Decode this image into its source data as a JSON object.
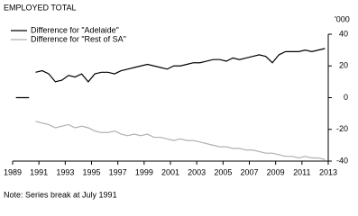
{
  "chart_data": {
    "type": "line",
    "title": "EMPLOYED TOTAL",
    "y_unit": "'000",
    "note": "Note: Series break at July 1991",
    "x": [
      1989.25,
      1990.25,
      1990.5,
      1990.75,
      1991.25,
      1991.75,
      1992.25,
      1992.75,
      1993.25,
      1993.75,
      1994.25,
      1994.75,
      1995.25,
      1995.75,
      1996.25,
      1996.75,
      1997.25,
      1997.75,
      1998.25,
      1998.75,
      1999.25,
      1999.75,
      2000.25,
      2000.75,
      2001.25,
      2001.75,
      2002.25,
      2002.75,
      2003.25,
      2003.75,
      2004.25,
      2004.75,
      2005.25,
      2005.75,
      2006.25,
      2006.75,
      2007.25,
      2007.75,
      2008.25,
      2008.75,
      2009.25,
      2009.75,
      2010.25,
      2010.75,
      2011.25,
      2011.75,
      2012.25,
      2012.75
    ],
    "series": [
      {
        "name": "Difference for \"Adelaide\"",
        "color": "#000000",
        "values": [
          0,
          0,
          null,
          16,
          17,
          15,
          10,
          11,
          14,
          13,
          15,
          10,
          15,
          16,
          16,
          15,
          17,
          18,
          19,
          20,
          21,
          20,
          19,
          18,
          20,
          20,
          21,
          22,
          22,
          23,
          24,
          24,
          23,
          25,
          24,
          25,
          26,
          27,
          26,
          22,
          27,
          29,
          29,
          29,
          30,
          29,
          30,
          31
        ]
      },
      {
        "name": "Difference for \"Rest of SA\"",
        "color": "#b0b0b0",
        "values": [
          null,
          null,
          null,
          -15,
          -16,
          -17,
          -19,
          -18,
          -17,
          -19,
          -18,
          -19,
          -21,
          -22,
          -22,
          -21,
          -23,
          -24,
          -23,
          -24,
          -23,
          -25,
          -25,
          -26,
          -27,
          -26,
          -27,
          -27,
          -28,
          -29,
          -30,
          -31,
          -31,
          -32,
          -32,
          -33,
          -33,
          -34,
          -35,
          -35,
          -36,
          -37,
          -37,
          -38,
          -37,
          -38,
          -38,
          -39
        ]
      }
    ],
    "xlim": [
      1989,
      2013
    ],
    "xticks": [
      1989,
      1991,
      1993,
      1995,
      1997,
      1999,
      2001,
      2003,
      2005,
      2007,
      2009,
      2011,
      2013
    ],
    "ylim": [
      -40,
      40
    ],
    "yticks": [
      40,
      20,
      0,
      -20,
      -40
    ]
  }
}
